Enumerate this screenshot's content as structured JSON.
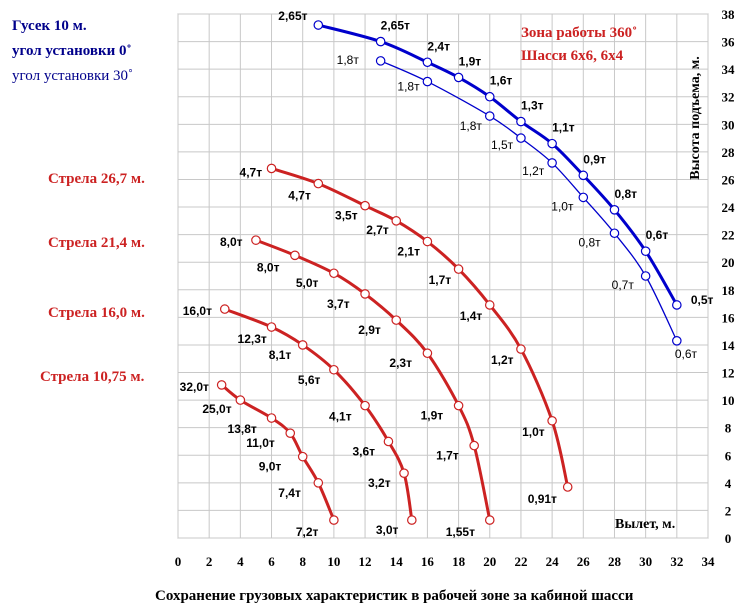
{
  "chart_data": {
    "type": "line",
    "xlabel": "Вылет, м.",
    "ylabel": "Высота подъема, м.",
    "caption": "Сохранение грузовых характеристик в рабочей зоне за кабиной шасси",
    "xlim": [
      0,
      34
    ],
    "ylim": [
      0,
      38
    ],
    "xticks": [
      "0",
      "2",
      "4",
      "6",
      "8",
      "10",
      "12",
      "14",
      "16",
      "18",
      "20",
      "22",
      "24",
      "26",
      "28",
      "30",
      "32",
      "34"
    ],
    "yticks": [
      "0",
      "2",
      "4",
      "6",
      "8",
      "10",
      "12",
      "14",
      "16",
      "18",
      "20",
      "22",
      "24",
      "26",
      "28",
      "30",
      "32",
      "34",
      "36",
      "38"
    ],
    "grid": true,
    "left_labels": {
      "jib_title": "Гусек 10 м.",
      "jib_angle_0": "угол установки 0˚",
      "jib_angle_30": "угол установки 30˚",
      "boom_26_7": "Стрела 26,7 м.",
      "boom_21_4": "Стрела 21,4 м.",
      "boom_16_0": "Стрела 16,0 м.",
      "boom_10_75": "Стрела 10,75 м."
    },
    "zone_note": {
      "line1": "Зона работы 360˚",
      "line2": "Шасси 6х6, 6х4"
    },
    "series": [
      {
        "key": "jib0",
        "color": "#0000cc",
        "thick": true,
        "points": [
          {
            "x": 9,
            "y": 37.2,
            "label": "2,65т"
          },
          {
            "x": 13,
            "y": 36.0,
            "label": "2,65т"
          },
          {
            "x": 16,
            "y": 34.5,
            "label": "2,4т"
          },
          {
            "x": 18,
            "y": 33.4,
            "label": "1,9т"
          },
          {
            "x": 20,
            "y": 32.0,
            "label": "1,6т"
          },
          {
            "x": 22,
            "y": 30.2,
            "label": "1,3т"
          },
          {
            "x": 24,
            "y": 28.6,
            "label": "1,1т"
          },
          {
            "x": 26,
            "y": 26.3,
            "label": "0,9т"
          },
          {
            "x": 28,
            "y": 23.8,
            "label": "0,8т"
          },
          {
            "x": 30,
            "y": 20.8,
            "label": "0,6т"
          },
          {
            "x": 32,
            "y": 16.9,
            "label": "0,5т"
          }
        ]
      },
      {
        "key": "jib30",
        "color": "#0000cc",
        "thick": false,
        "points": [
          {
            "x": 13,
            "y": 34.6,
            "label": "1,8т"
          },
          {
            "x": 16,
            "y": 33.1,
            "label": "1,8т"
          },
          {
            "x": 20,
            "y": 30.6,
            "label": "1,8т"
          },
          {
            "x": 22,
            "y": 29.0,
            "label": "1,5т"
          },
          {
            "x": 24,
            "y": 27.2,
            "label": "1,2т"
          },
          {
            "x": 26,
            "y": 24.7,
            "label": "1,0т"
          },
          {
            "x": 28,
            "y": 22.1,
            "label": "0,8т"
          },
          {
            "x": 30,
            "y": 19.0,
            "label": "0,7т"
          },
          {
            "x": 32,
            "y": 14.3,
            "label": "0,6т"
          }
        ]
      },
      {
        "key": "boom26_7",
        "color": "#cc2222",
        "thick": true,
        "points": [
          {
            "x": 6,
            "y": 26.8,
            "label": "4,7т"
          },
          {
            "x": 9,
            "y": 25.7,
            "label": "4,7т"
          },
          {
            "x": 12,
            "y": 24.1,
            "label": "3,5т"
          },
          {
            "x": 14,
            "y": 23.0,
            "label": "2,7т"
          },
          {
            "x": 16,
            "y": 21.5,
            "label": "2,1т"
          },
          {
            "x": 18,
            "y": 19.5,
            "label": "1,7т"
          },
          {
            "x": 20,
            "y": 16.9,
            "label": "1,4т"
          },
          {
            "x": 22,
            "y": 13.7,
            "label": "1,2т"
          },
          {
            "x": 24,
            "y": 8.5,
            "label": "1,0т"
          },
          {
            "x": 25,
            "y": 3.7,
            "label": "0,91т"
          }
        ]
      },
      {
        "key": "boom21_4",
        "color": "#cc2222",
        "thick": true,
        "points": [
          {
            "x": 5,
            "y": 21.6,
            "label": "8,0т"
          },
          {
            "x": 7.5,
            "y": 20.5,
            "label": "8,0т"
          },
          {
            "x": 10,
            "y": 19.2,
            "label": "5,0т"
          },
          {
            "x": 12,
            "y": 17.7,
            "label": "3,7т"
          },
          {
            "x": 14,
            "y": 15.8,
            "label": "2,9т"
          },
          {
            "x": 16,
            "y": 13.4,
            "label": "2,3т"
          },
          {
            "x": 18,
            "y": 9.6,
            "label": "1,9т"
          },
          {
            "x": 19,
            "y": 6.7,
            "label": "1,7т"
          },
          {
            "x": 20,
            "y": 1.3,
            "label": "1,55т"
          }
        ]
      },
      {
        "key": "boom16_0",
        "color": "#cc2222",
        "thick": true,
        "points": [
          {
            "x": 3,
            "y": 16.6,
            "label": "16,0т"
          },
          {
            "x": 6,
            "y": 15.3,
            "label": "12,3т"
          },
          {
            "x": 8,
            "y": 14.0,
            "label": "8,1т"
          },
          {
            "x": 10,
            "y": 12.2,
            "label": "5,6т"
          },
          {
            "x": 12,
            "y": 9.6,
            "label": "4,1т"
          },
          {
            "x": 13.5,
            "y": 7.0,
            "label": "3,6т"
          },
          {
            "x": 14.5,
            "y": 4.7,
            "label": "3,2т"
          },
          {
            "x": 15,
            "y": 1.3,
            "label": "3,0т"
          }
        ]
      },
      {
        "key": "boom10_75",
        "color": "#cc2222",
        "thick": true,
        "points": [
          {
            "x": 2.8,
            "y": 11.1,
            "label": "32,0т"
          },
          {
            "x": 4,
            "y": 10.0,
            "label": "25,0т"
          },
          {
            "x": 6,
            "y": 8.7,
            "label": "13,8т"
          },
          {
            "x": 7.2,
            "y": 7.6,
            "label": "11,0т"
          },
          {
            "x": 8,
            "y": 5.9,
            "label": "9,0т"
          },
          {
            "x": 9,
            "y": 4.0,
            "label": "7,4т"
          },
          {
            "x": 10,
            "y": 1.3,
            "label": "7,2т"
          }
        ]
      }
    ]
  }
}
